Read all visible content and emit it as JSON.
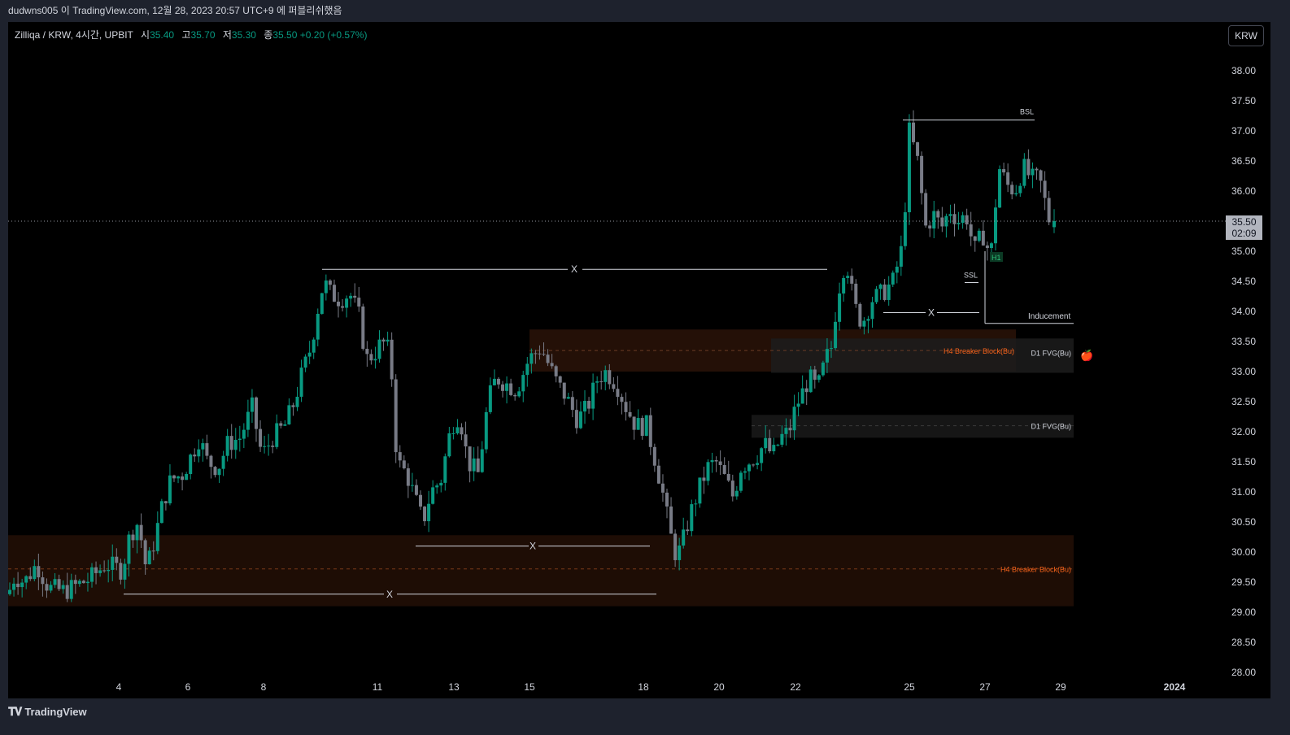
{
  "header": {
    "publish_text": "dudwns005 이 TradingView.com, 12월 28, 2023 20:57 UTC+9 에 퍼블리쉬했음"
  },
  "legend": {
    "symbol": "Zilliqa / KRW, 4시간, UPBIT",
    "open_label": "시",
    "open": "35.40",
    "high_label": "고",
    "high": "35.70",
    "low_label": "저",
    "low": "35.30",
    "close_label": "종",
    "close": "35.50",
    "change": "+0.20 (+0.57%)"
  },
  "currency_button": "KRW",
  "price_axis": {
    "ticks": [
      "38.00",
      "37.50",
      "37.00",
      "36.50",
      "36.00",
      "35.50",
      "35.00",
      "34.50",
      "34.00",
      "33.50",
      "33.00",
      "32.50",
      "32.00",
      "31.50",
      "31.00",
      "30.50",
      "30.00",
      "29.50",
      "29.00",
      "28.50",
      "28.00"
    ],
    "current_price": "35.50",
    "countdown": "02:09"
  },
  "time_axis": {
    "ticks": [
      "4",
      "6",
      "8",
      "11",
      "13",
      "15",
      "18",
      "20",
      "22",
      "25",
      "27",
      "29",
      "2024"
    ]
  },
  "annotations": {
    "bsl": "BSL",
    "ssl": "SSL",
    "h1": "H1",
    "inducement": "Inducement",
    "x": "X",
    "h4_breaker_block_label": "H4 Breaker Block(Bu)",
    "d1_fvg_label": "D1 FVG(Bu)",
    "apple_icon": "🍎"
  },
  "chart_data": {
    "type": "candlestick",
    "symbol": "Zilliqa / KRW",
    "interval": "4시간",
    "exchange": "UPBIT",
    "last": {
      "open": 35.4,
      "high": 35.7,
      "low": 35.3,
      "close": 35.5
    },
    "ylim": [
      28.0,
      38.0
    ],
    "x_ticks": [
      "4",
      "6",
      "8",
      "11",
      "13",
      "15",
      "18",
      "20",
      "22",
      "25",
      "27",
      "29",
      "2024"
    ],
    "zones": [
      {
        "label": "H4 Breaker Block(Bu)",
        "top": 30.28,
        "bottom": 29.1,
        "mid": 29.72
      },
      {
        "label": "H4 Breaker Block(Bu)",
        "top": 33.7,
        "bottom": 33.0,
        "mid": 33.35
      },
      {
        "label": "D1 FVG(Bu)",
        "top": 33.55,
        "bottom": 32.98
      },
      {
        "label": "D1 FVG(Bu)",
        "top": 32.28,
        "bottom": 31.9
      }
    ],
    "levels": [
      {
        "label": "BSL",
        "price": 37.18
      },
      {
        "label": "X",
        "price": 34.7
      },
      {
        "label": "X",
        "price": 30.1
      },
      {
        "label": "X",
        "price": 29.3
      },
      {
        "label": "X",
        "price": 33.98
      },
      {
        "label": "SSL",
        "price": 34.48
      },
      {
        "label": "Inducement",
        "price": 33.8
      }
    ],
    "colors": {
      "up": "#089981",
      "down": "#787b86",
      "zone": "#2a1508",
      "zone_label": "#f7631b",
      "fvg": "#1a1a1a"
    },
    "grid": false
  }
}
